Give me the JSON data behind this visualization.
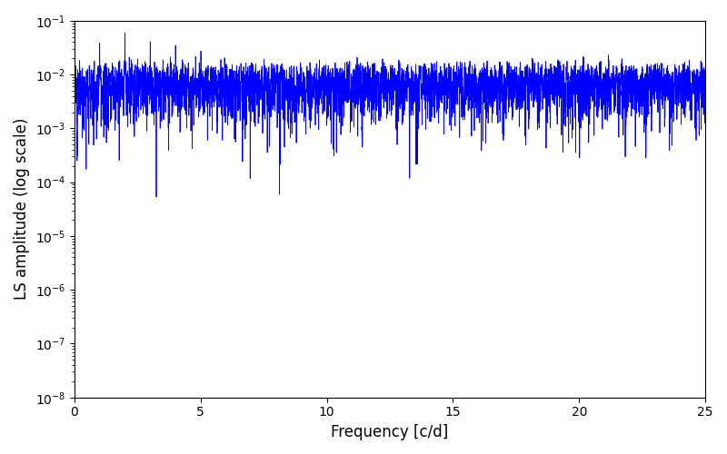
{
  "xlabel": "Frequency [c/d]",
  "ylabel": "LS amplitude (log scale)",
  "xlim": [
    0,
    25
  ],
  "ylim": [
    1e-08,
    0.1
  ],
  "line_color": "#0000ff",
  "line_width": 0.6,
  "figsize": [
    8.0,
    5.0
  ],
  "dpi": 100,
  "seed": 12345,
  "n_points": 8000,
  "background_color": "#ffffff"
}
